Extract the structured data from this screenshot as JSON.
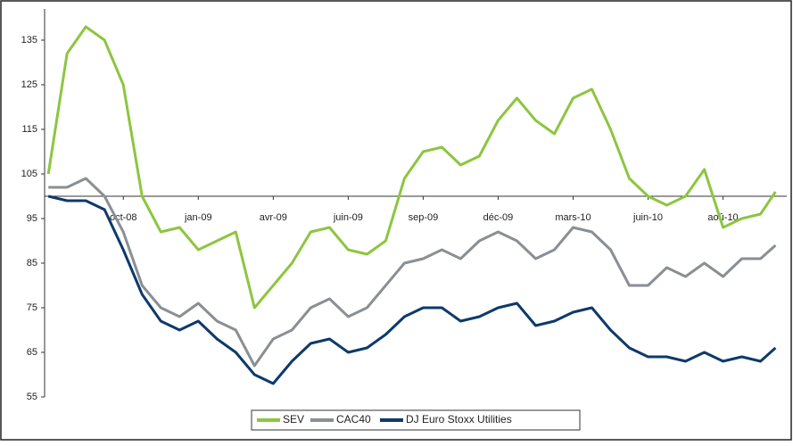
{
  "chart_data": {
    "type": "line",
    "x": [
      0,
      0.25,
      0.5,
      0.75,
      1,
      1.25,
      1.5,
      1.75,
      2,
      2.25,
      2.5,
      2.75,
      3,
      3.25,
      3.5,
      3.75,
      4,
      4.25,
      4.5,
      4.75,
      5,
      5.25,
      5.5,
      5.75,
      6,
      6.25,
      6.5,
      6.75,
      7,
      7.25,
      7.5,
      7.75,
      8,
      8.25,
      8.5,
      8.75,
      9,
      9.25,
      9.5,
      9.7
    ],
    "series": [
      {
        "name": "SEV",
        "color": "#8cc63f",
        "values": [
          105,
          132,
          138,
          135,
          125,
          100,
          92,
          93,
          88,
          90,
          92,
          75,
          80,
          85,
          92,
          93,
          88,
          87,
          90,
          104,
          110,
          111,
          107,
          109,
          117,
          122,
          117,
          114,
          122,
          124,
          115,
          104,
          100,
          98,
          100,
          106,
          93,
          95,
          96,
          101
        ]
      },
      {
        "name": "CAC40",
        "color": "#8a8f94",
        "values": [
          102,
          102,
          104,
          100,
          92,
          80,
          75,
          73,
          76,
          72,
          70,
          62,
          68,
          70,
          75,
          77,
          73,
          75,
          80,
          85,
          86,
          88,
          86,
          90,
          92,
          90,
          86,
          88,
          93,
          92,
          88,
          80,
          80,
          84,
          82,
          85,
          82,
          86,
          86,
          89
        ]
      },
      {
        "name": "DJ Euro Stoxx Utilities",
        "color": "#0d3a6a",
        "values": [
          100,
          99,
          99,
          97,
          88,
          78,
          72,
          70,
          72,
          68,
          65,
          60,
          58,
          63,
          67,
          68,
          65,
          66,
          69,
          73,
          75,
          75,
          72,
          73,
          75,
          76,
          71,
          72,
          74,
          75,
          70,
          66,
          64,
          64,
          63,
          65,
          63,
          64,
          63,
          66
        ]
      }
    ],
    "xlim": [
      -0.05,
      9.85
    ],
    "xticks": [
      {
        "value": 1,
        "label": "oct-08"
      },
      {
        "value": 2,
        "label": "jan-09"
      },
      {
        "value": 3,
        "label": "avr-09"
      },
      {
        "value": 4,
        "label": "juin-09"
      },
      {
        "value": 5,
        "label": "sep-09"
      },
      {
        "value": 6,
        "label": "déc-09"
      },
      {
        "value": 7,
        "label": "mars-10"
      },
      {
        "value": 8,
        "label": "juin-10"
      },
      {
        "value": 9,
        "label": "aoû-10"
      }
    ],
    "ylim": [
      55,
      142
    ],
    "yticks": [
      55,
      65,
      75,
      85,
      95,
      105,
      115,
      125,
      135
    ],
    "x_axis_at": 100,
    "legend": "bottom"
  }
}
